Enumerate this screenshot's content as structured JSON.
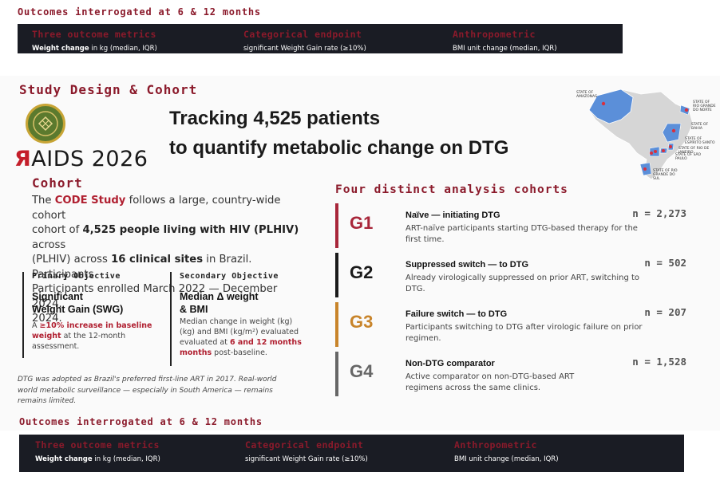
{
  "outcomes_top": {
    "title": "Outcomes interrogated at 6 & 12 months",
    "columns": [
      {
        "header": "Three outcome metrics",
        "value_bold": "Weight change",
        "value_rest": " in kg (median, IQR)"
      },
      {
        "header": "Categorical endpoint",
        "value_bold": "",
        "value_rest": "significant Weight Gain rate (≥10%)"
      },
      {
        "header": "Anthropometric",
        "value_bold": "",
        "value_rest": "BMI unit change (median, IQR)"
      }
    ]
  },
  "study": {
    "section_title": "Study Design & Cohort",
    "logo_text": "AIDS 2026",
    "logo_glyph": "Я",
    "headline_line1": "Tracking 4,525 patients",
    "headline_line2": "to quantify metabolic change on DTG"
  },
  "cohort": {
    "title": "Cohort",
    "intro": "The ",
    "study_name": "CODE Study",
    "line1_rest": " follows a large, country-wide cohort",
    "line2a": "cohort of ",
    "plhiv": "4,525 people living with HIV (PLHIV)",
    "line2b": " across",
    "line3a": "(PLHIV) across ",
    "sites": "16 clinical sites",
    "line3b": " in Brazil. Participants",
    "line4": "Participants enrolled March 2022 — December 2024.",
    "line5": "2024."
  },
  "primary": {
    "header": "Primary Objective",
    "title_l1": "Significant",
    "title_l2": "Weight Gain (SWG)",
    "d_a": "A ",
    "d_red1": "≥10% increase in baseline",
    "d_red2": "weight",
    "d_b": " at the 12-month",
    "d_c": "assessment."
  },
  "secondary": {
    "header": "Secondary Objective",
    "title_l1": "Median Δ weight",
    "title_l2": "& BMI",
    "d_l1": "Median change in weight (kg)",
    "d_l2": "(kg) and BMI (kg/m²) evaluated",
    "d_l3a": "evaluated at ",
    "d_red1": "6 and 12 months",
    "d_red2": "months",
    "d_l4b": " post-baseline."
  },
  "footnote": {
    "l1": "DTG was adopted as Brazil's preferred first-line ART in 2017. Real-world",
    "l2": "world metabolic surveillance — especially in South America — remains",
    "l3": "remains limited."
  },
  "cohorts_section": {
    "title": "Four distinct analysis cohorts",
    "groups": [
      {
        "code": "G1",
        "color": "#a8263a",
        "label": "Naïve — initiating DTG",
        "desc": "ART-naïve participants starting DTG-based therapy for the first time.",
        "n": "n = 2,273"
      },
      {
        "code": "G2",
        "color": "#1a1a1a",
        "label": "Suppressed switch — to DTG",
        "desc": "Already virologically suppressed on prior ART, switching to DTG.",
        "n": "n = 502"
      },
      {
        "code": "G3",
        "color": "#c8842a",
        "label": "Failure switch — to DTG",
        "desc": "Participants switching to DTG after virologic failure on prior regimen.",
        "n": "n = 207"
      },
      {
        "code": "G4",
        "color": "#666666",
        "label": "Non-DTG comparator",
        "desc": "Active comparator on non-DTG-based ART regimens across the same clinics.",
        "n": "n = 1,528"
      }
    ]
  },
  "map_labels": {
    "amazonas": "STATE OF AMAZONAS",
    "rn": "STATE OF RIO GRANDE DO NORTE",
    "bahia": "STATE OF BAHIA",
    "es": "STATE OF ESPÍRITO SANTO",
    "rj": "STATE OF RIO DE JANEIRO",
    "sp": "STATE OF SÃO PAULO",
    "rs": "STATE OF RIO GRANDE DO SUL"
  },
  "outcomes_bottom": {
    "title": "Outcomes interrogated at 6 & 12 months",
    "columns": [
      {
        "header": "Three outcome metrics",
        "value_bold": "Weight change",
        "value_rest": " in kg (median, IQR)"
      },
      {
        "header": "Categorical endpoint",
        "value_bold": "",
        "value_rest": "significant Weight Gain rate (≥10%)"
      },
      {
        "header": "Anthropometric",
        "value_bold": "",
        "value_rest": "BMI unit change (median, IQR)"
      }
    ]
  },
  "colors": {
    "accent": "#8b1a2b",
    "bar": "#1a1c24",
    "map_state": "#5b8fd9"
  }
}
